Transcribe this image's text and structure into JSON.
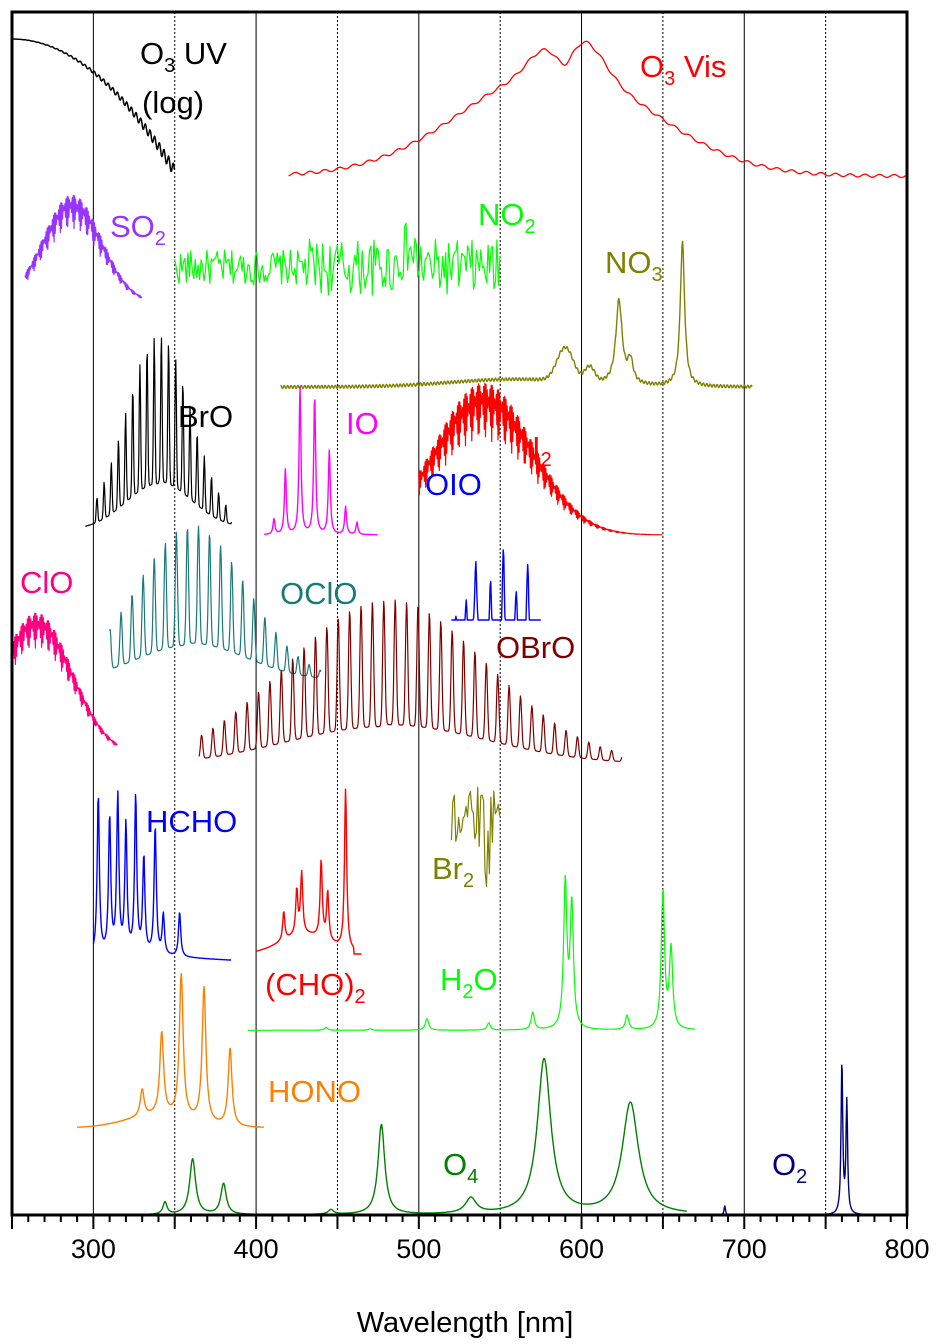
{
  "chart_data": {
    "type": "line",
    "title": "",
    "xlabel": "Wavelength [nm]",
    "ylabel": "",
    "xlim": [
      250,
      800
    ],
    "x_ticks": [
      "300",
      "400",
      "500",
      "600",
      "700",
      "800"
    ],
    "major_gridlines": [
      300,
      400,
      500,
      600,
      700
    ],
    "minor_gridlines": [
      350,
      450,
      550,
      650,
      750
    ],
    "y_axis_shown": false,
    "series": [
      {
        "name": "O3 UV (log)",
        "label_main": "O",
        "label_sub": "3",
        "label_rest": " UV",
        "label_line2": "(log)",
        "color": "#000000",
        "x_range": [
          250,
          350
        ],
        "peaks": [
          [
            250,
            1.0
          ]
        ]
      },
      {
        "name": "O3 Vis",
        "label_main": "O",
        "label_sub": "3",
        "label_rest": " Vis",
        "color": "#ff0000",
        "x_range": [
          420,
          800
        ],
        "peaks": [
          [
            575,
            0.85
          ],
          [
            602,
            1.0
          ]
        ]
      },
      {
        "name": "SO2",
        "label_main": "SO",
        "label_sub": "2",
        "label_rest": "",
        "color": "#9933ff",
        "x_range": [
          258,
          330
        ],
        "peaks": [
          [
            287,
            1.0
          ]
        ]
      },
      {
        "name": "NO2",
        "label_main": "NO",
        "label_sub": "2",
        "label_rest": "",
        "color": "#00ff00",
        "x_range": [
          350,
          550
        ],
        "peaks": [
          [
            493,
            1.0
          ]
        ]
      },
      {
        "name": "NO3",
        "label_main": "NO",
        "label_sub": "3",
        "label_rest": "",
        "color": "#808000",
        "x_range": [
          415,
          705
        ],
        "peaks": [
          [
            590,
            0.28
          ],
          [
            623,
            0.62
          ],
          [
            662,
            1.0
          ]
        ]
      },
      {
        "name": "BrO",
        "label_main": "BrO",
        "label_sub": "",
        "label_rest": "",
        "color": "#000000",
        "x_range": [
          295,
          385
        ],
        "peaks": [
          [
            338,
            1.0
          ]
        ]
      },
      {
        "name": "IO",
        "label_main": "IO",
        "label_sub": "",
        "label_rest": "",
        "color": "#ff00ff",
        "x_range": [
          405,
          475
        ],
        "peaks": [
          [
            427,
            1.0
          ],
          [
            436,
            0.95
          ]
        ]
      },
      {
        "name": "I2",
        "label_main": "I",
        "label_sub": "2",
        "label_rest": "",
        "color": "#ff0000",
        "x_range": [
          500,
          650
        ],
        "peaks": [
          [
            540,
            1.0
          ]
        ]
      },
      {
        "name": "OIO",
        "label_main": "OIO",
        "label_sub": "",
        "label_rest": "",
        "color": "#0000ff",
        "x_range": [
          520,
          575
        ],
        "peaks": [
          [
            535,
            1.0
          ],
          [
            552,
            0.9
          ]
        ]
      },
      {
        "name": "ClO",
        "label_main": "ClO",
        "label_sub": "",
        "label_rest": "",
        "color": "#ff0080",
        "x_range": [
          250,
          315
        ],
        "peaks": [
          [
            265,
            1.0
          ]
        ]
      },
      {
        "name": "OClO",
        "label_main": "OClO",
        "label_sub": "",
        "label_rest": "",
        "color": "#1a7a7a",
        "x_range": [
          310,
          440
        ],
        "peaks": [
          [
            365,
            1.0
          ]
        ]
      },
      {
        "name": "OBrO",
        "label_main": "OBrO",
        "label_sub": "",
        "label_rest": "",
        "color": "#800000",
        "x_range": [
          365,
          625
        ],
        "peaks": [
          [
            480,
            1.0
          ]
        ]
      },
      {
        "name": "HCHO",
        "label_main": "HCHO",
        "label_sub": "",
        "label_rest": "",
        "color": "#0000ff",
        "x_range": [
          300,
          385
        ],
        "peaks": [
          [
            303,
            1.0
          ],
          [
            315,
            1.0
          ],
          [
            326,
            1.0
          ]
        ]
      },
      {
        "name": "Br2",
        "label_main": "Br",
        "label_sub": "2",
        "label_rest": "",
        "color": "#808000",
        "x_range": [
          520,
          550
        ],
        "peaks": [
          [
            538,
            1.0
          ]
        ]
      },
      {
        "name": "(CHO)2",
        "label_main": "(CHO)",
        "label_sub": "2",
        "label_rest": "",
        "color": "#ff0000",
        "x_range": [
          400,
          465
        ],
        "peaks": [
          [
            455,
            1.0
          ]
        ]
      },
      {
        "name": "H2O",
        "label_main": "H",
        "label_sub": "2",
        "label_rest": "O",
        "color": "#00ff00",
        "x_range": [
          395,
          670
        ],
        "peaks": [
          [
            592,
            1.0
          ],
          [
            651,
            1.0
          ]
        ]
      },
      {
        "name": "HONO",
        "label_main": "HONO",
        "label_sub": "",
        "label_rest": "",
        "color": "#ff8000",
        "x_range": [
          290,
          405
        ],
        "peaks": [
          [
            354,
            1.0
          ],
          [
            368,
            0.92
          ],
          [
            384,
            0.62
          ]
        ]
      },
      {
        "name": "O4",
        "label_main": "O",
        "label_sub": "4",
        "label_rest": "",
        "color": "#008000",
        "x_range": [
          335,
          665
        ],
        "peaks": [
          [
            361,
            0.36
          ],
          [
            380,
            0.2
          ],
          [
            477,
            0.58
          ],
          [
            532,
            0.1
          ],
          [
            577,
            1.0
          ],
          [
            630,
            0.72
          ]
        ]
      },
      {
        "name": "O2",
        "label_main": "O",
        "label_sub": "2",
        "label_rest": "",
        "color": "#00007f",
        "x_range": [
          665,
          800
        ],
        "peaks": [
          [
            688,
            0.06
          ],
          [
            761,
            1.0
          ]
        ]
      }
    ],
    "grid": true,
    "legend": "none (inline labels)"
  }
}
